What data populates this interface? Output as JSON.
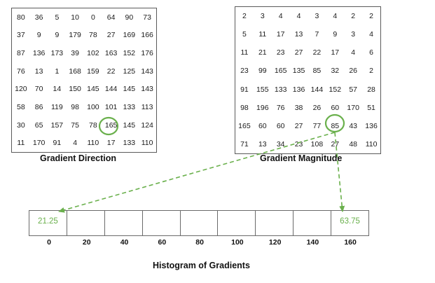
{
  "gradient_direction": {
    "caption": "Gradient Direction",
    "rows": [
      [
        "80",
        "36",
        "5",
        "10",
        "0",
        "64",
        "90",
        "73"
      ],
      [
        "37",
        "9",
        "9",
        "179",
        "78",
        "27",
        "169",
        "166"
      ],
      [
        "87",
        "136",
        "173",
        "39",
        "102",
        "163",
        "152",
        "176"
      ],
      [
        "76",
        "13",
        "1",
        "168",
        "159",
        "22",
        "125",
        "143"
      ],
      [
        "120",
        "70",
        "14",
        "150",
        "145",
        "144",
        "145",
        "143"
      ],
      [
        "58",
        "86",
        "119",
        "98",
        "100",
        "101",
        "133",
        "113"
      ],
      [
        "30",
        "65",
        "157",
        "75",
        "78",
        "165",
        "145",
        "124"
      ],
      [
        "11",
        "170",
        "91",
        "4",
        "110",
        "17",
        "133",
        "110"
      ]
    ],
    "highlight": {
      "row": 6,
      "col": 5
    }
  },
  "gradient_magnitude": {
    "caption": "Gradient Magnitude",
    "rows": [
      [
        "2",
        "3",
        "4",
        "4",
        "3",
        "4",
        "2",
        "2"
      ],
      [
        "5",
        "11",
        "17",
        "13",
        "7",
        "9",
        "3",
        "4"
      ],
      [
        "11",
        "21",
        "23",
        "27",
        "22",
        "17",
        "4",
        "6"
      ],
      [
        "23",
        "99",
        "165",
        "135",
        "85",
        "32",
        "26",
        "2"
      ],
      [
        "91",
        "155",
        "133",
        "136",
        "144",
        "152",
        "57",
        "28"
      ],
      [
        "98",
        "196",
        "76",
        "38",
        "26",
        "60",
        "170",
        "51"
      ],
      [
        "165",
        "60",
        "60",
        "27",
        "77",
        "85",
        "43",
        "136"
      ],
      [
        "71",
        "13",
        "34",
        "23",
        "108",
        "27",
        "48",
        "110"
      ]
    ],
    "highlight": {
      "row": 6,
      "col": 5
    }
  },
  "histogram": {
    "title": "Histogram of Gradients",
    "bin_labels": [
      "0",
      "20",
      "40",
      "60",
      "80",
      "100",
      "120",
      "140",
      "160"
    ],
    "bin_values": [
      "21.25",
      "",
      "",
      "",
      "",
      "",
      "",
      "",
      "63.75"
    ]
  },
  "colors": {
    "accent": "#6ab04c",
    "border": "#5a5a5a",
    "text": "#1a1a1a"
  }
}
